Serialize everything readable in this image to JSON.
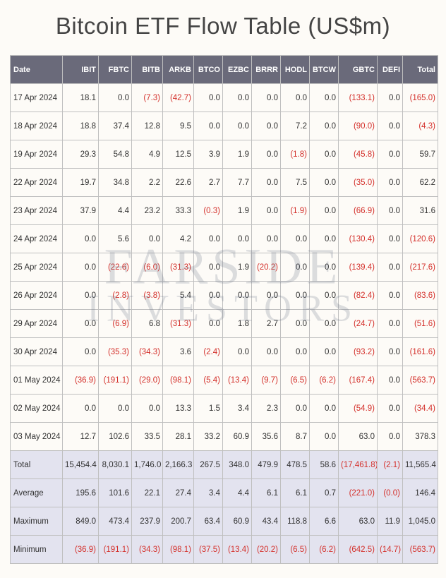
{
  "title": "Bitcoin ETF Flow Table (US$m)",
  "watermark": {
    "line1": "FARSIDE",
    "line2": "INVESTORS"
  },
  "columns": [
    "Date",
    "IBIT",
    "FBTC",
    "BITB",
    "ARKB",
    "BTCO",
    "EZBC",
    "BRRR",
    "HODL",
    "BTCW",
    "GBTC",
    "DEFI",
    "Total"
  ],
  "rows": [
    {
      "date": "17 Apr 2024",
      "v": [
        "18.1",
        "0.0",
        "(7.3)",
        "(42.7)",
        "0.0",
        "0.0",
        "0.0",
        "0.0",
        "0.0",
        "(133.1)",
        "0.0",
        "(165.0)"
      ]
    },
    {
      "date": "18 Apr 2024",
      "v": [
        "18.8",
        "37.4",
        "12.8",
        "9.5",
        "0.0",
        "0.0",
        "0.0",
        "7.2",
        "0.0",
        "(90.0)",
        "0.0",
        "(4.3)"
      ]
    },
    {
      "date": "19 Apr 2024",
      "v": [
        "29.3",
        "54.8",
        "4.9",
        "12.5",
        "3.9",
        "1.9",
        "0.0",
        "(1.8)",
        "0.0",
        "(45.8)",
        "0.0",
        "59.7"
      ]
    },
    {
      "date": "22 Apr 2024",
      "v": [
        "19.7",
        "34.8",
        "2.2",
        "22.6",
        "2.7",
        "7.7",
        "0.0",
        "7.5",
        "0.0",
        "(35.0)",
        "0.0",
        "62.2"
      ]
    },
    {
      "date": "23 Apr 2024",
      "v": [
        "37.9",
        "4.4",
        "23.2",
        "33.3",
        "(0.3)",
        "1.9",
        "0.0",
        "(1.9)",
        "0.0",
        "(66.9)",
        "0.0",
        "31.6"
      ]
    },
    {
      "date": "24 Apr 2024",
      "v": [
        "0.0",
        "5.6",
        "0.0",
        "4.2",
        "0.0",
        "0.0",
        "0.0",
        "0.0",
        "0.0",
        "(130.4)",
        "0.0",
        "(120.6)"
      ]
    },
    {
      "date": "25 Apr 2024",
      "v": [
        "0.0",
        "(22.6)",
        "(6.0)",
        "(31.3)",
        "0.0",
        "1.9",
        "(20.2)",
        "0.0",
        "0.0",
        "(139.4)",
        "0.0",
        "(217.6)"
      ]
    },
    {
      "date": "26 Apr 2024",
      "v": [
        "0.0",
        "(2.8)",
        "(3.8)",
        "5.4",
        "0.0",
        "0.0",
        "0.0",
        "0.0",
        "0.0",
        "(82.4)",
        "0.0",
        "(83.6)"
      ]
    },
    {
      "date": "29 Apr 2024",
      "v": [
        "0.0",
        "(6.9)",
        "6.8",
        "(31.3)",
        "0.0",
        "1.8",
        "2.7",
        "0.0",
        "0.0",
        "(24.7)",
        "0.0",
        "(51.6)"
      ]
    },
    {
      "date": "30 Apr 2024",
      "v": [
        "0.0",
        "(35.3)",
        "(34.3)",
        "3.6",
        "(2.4)",
        "0.0",
        "0.0",
        "0.0",
        "0.0",
        "(93.2)",
        "0.0",
        "(161.6)"
      ]
    },
    {
      "date": "01 May 2024",
      "v": [
        "(36.9)",
        "(191.1)",
        "(29.0)",
        "(98.1)",
        "(5.4)",
        "(13.4)",
        "(9.7)",
        "(6.5)",
        "(6.2)",
        "(167.4)",
        "0.0",
        "(563.7)"
      ]
    },
    {
      "date": "02 May 2024",
      "v": [
        "0.0",
        "0.0",
        "0.0",
        "13.3",
        "1.5",
        "3.4",
        "2.3",
        "0.0",
        "0.0",
        "(54.9)",
        "0.0",
        "(34.4)"
      ]
    },
    {
      "date": "03 May 2024",
      "v": [
        "12.7",
        "102.6",
        "33.5",
        "28.1",
        "33.2",
        "60.9",
        "35.6",
        "8.7",
        "0.0",
        "63.0",
        "0.0",
        "378.3"
      ]
    }
  ],
  "summary": [
    {
      "label": "Total",
      "v": [
        "15,454.4",
        "8,030.1",
        "1,746.0",
        "2,166.3",
        "267.5",
        "348.0",
        "479.9",
        "478.5",
        "58.6",
        "(17,461.8)",
        "(2.1)",
        "11,565.4"
      ]
    },
    {
      "label": "Average",
      "v": [
        "195.6",
        "101.6",
        "22.1",
        "27.4",
        "3.4",
        "4.4",
        "6.1",
        "6.1",
        "0.7",
        "(221.0)",
        "(0.0)",
        "146.4"
      ]
    },
    {
      "label": "Maximum",
      "v": [
        "849.0",
        "473.4",
        "237.9",
        "200.7",
        "63.4",
        "60.9",
        "43.4",
        "118.8",
        "6.6",
        "63.0",
        "11.9",
        "1,045.0"
      ]
    },
    {
      "label": "Minimum",
      "v": [
        "(36.9)",
        "(191.1)",
        "(34.3)",
        "(98.1)",
        "(37.5)",
        "(13.4)",
        "(20.2)",
        "(6.5)",
        "(6.2)",
        "(642.5)",
        "(14.7)",
        "(563.7)"
      ]
    }
  ],
  "colors": {
    "neg": "#d4302b",
    "header_bg": "#6a6a7a",
    "summary_bg": "#e3e3ef",
    "border": "#bfbfbf"
  }
}
